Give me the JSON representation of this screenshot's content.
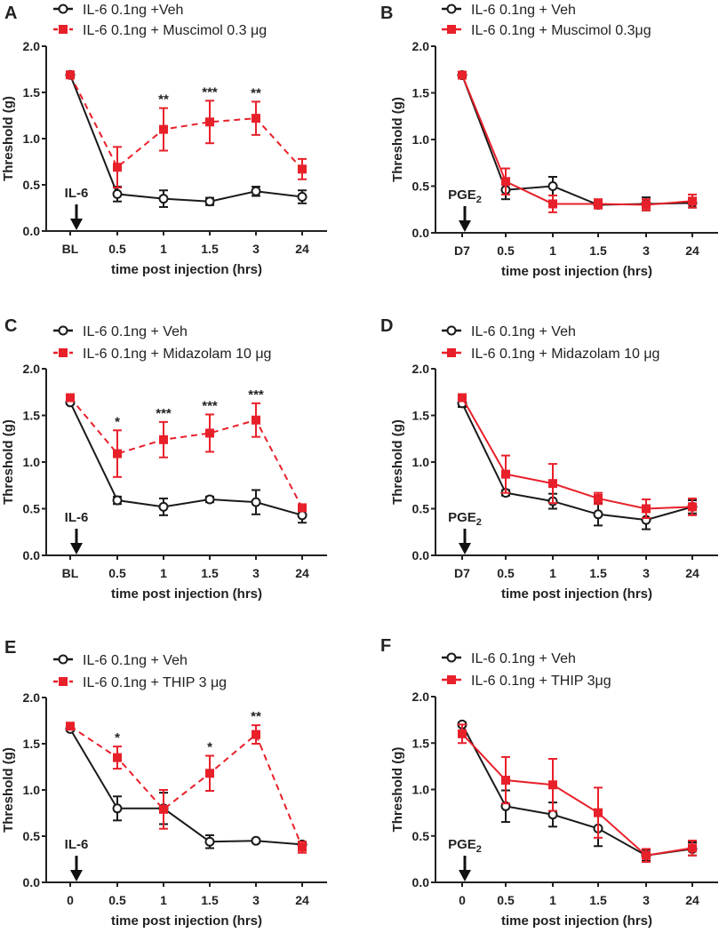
{
  "colors": {
    "veh": "#1a1a1a",
    "drug": "#e8202a"
  },
  "chart_data": [
    {
      "panel": "A",
      "type": "line",
      "categories": [
        "BL",
        "0.5",
        "1",
        "1.5",
        "3",
        "24"
      ],
      "xlabel": "time post injection (hrs)",
      "ylabel": "Threshold (g)",
      "ylim": [
        0,
        2.0
      ],
      "yticks": [
        "0.0",
        "0.5",
        "1.0",
        "1.5",
        "2.0"
      ],
      "injection_label": "IL-6",
      "injection_sub": "",
      "series": [
        {
          "name": "IL-6 0.1ng +Veh",
          "values": [
            1.69,
            0.4,
            0.35,
            0.32,
            0.43,
            0.37
          ],
          "errors": [
            0,
            0.08,
            0.09,
            0.04,
            0.05,
            0.07
          ],
          "dashed": false
        },
        {
          "name": "IL-6 0.1ng + Muscimol 0.3 μg",
          "values": [
            1.69,
            0.69,
            1.1,
            1.18,
            1.22,
            0.67
          ],
          "errors": [
            0,
            0.22,
            0.23,
            0.23,
            0.18,
            0.11
          ],
          "dashed": true
        }
      ],
      "significance": [
        "",
        "",
        "**",
        "***",
        "**",
        ""
      ]
    },
    {
      "panel": "B",
      "type": "line",
      "categories": [
        "D7",
        "0.5",
        "1",
        "1.5",
        "3",
        "24"
      ],
      "xlabel": "time post injection (hrs)",
      "ylabel": "Threshold (g)",
      "ylim": [
        0,
        2.0
      ],
      "yticks": [
        "0.0",
        "0.5",
        "1.0",
        "1.5",
        "2.0"
      ],
      "injection_label": "PGE",
      "injection_sub": "2",
      "series": [
        {
          "name": "IL-6 0.1ng + Veh",
          "values": [
            1.69,
            0.46,
            0.5,
            0.3,
            0.31,
            0.32
          ],
          "errors": [
            0,
            0.1,
            0.1,
            0.03,
            0.07,
            0.05
          ],
          "dashed": false
        },
        {
          "name": "IL-6 0.1ng + Muscimol 0.3μg",
          "values": [
            1.69,
            0.55,
            0.31,
            0.31,
            0.3,
            0.34
          ],
          "errors": [
            0,
            0.14,
            0.09,
            0.05,
            0.06,
            0.07
          ],
          "dashed": false
        }
      ],
      "significance": [
        "",
        "",
        "",
        "",
        "",
        ""
      ]
    },
    {
      "panel": "C",
      "type": "line",
      "categories": [
        "BL",
        "0.5",
        "1",
        "1.5",
        "3",
        "24"
      ],
      "xlabel": "time post injection (hrs)",
      "ylabel": "Threshold (g)",
      "ylim": [
        0,
        2.0
      ],
      "yticks": [
        "0.0",
        "0.5",
        "1.0",
        "1.5",
        "2.0"
      ],
      "injection_label": "IL-6",
      "injection_sub": "",
      "series": [
        {
          "name": "IL-6 0.1ng + Veh",
          "values": [
            1.64,
            0.59,
            0.52,
            0.6,
            0.57,
            0.43
          ],
          "errors": [
            0.02,
            0.04,
            0.09,
            0.03,
            0.13,
            0.08
          ],
          "dashed": false
        },
        {
          "name": "IL-6 0.1ng + Midazolam 10 μg",
          "values": [
            1.69,
            1.09,
            1.24,
            1.31,
            1.45,
            0.51
          ],
          "errors": [
            0,
            0.25,
            0.19,
            0.2,
            0.18,
            0.03
          ],
          "dashed": true
        }
      ],
      "significance": [
        "",
        "*",
        "***",
        "***",
        "***",
        ""
      ]
    },
    {
      "panel": "D",
      "type": "line",
      "categories": [
        "D7",
        "0.5",
        "1",
        "1.5",
        "3",
        "24"
      ],
      "xlabel": "time post injection (hrs)",
      "ylabel": "Threshold (g)",
      "ylim": [
        0,
        2.0
      ],
      "yticks": [
        "0.0",
        "0.5",
        "1.0",
        "1.5",
        "2.0"
      ],
      "injection_label": "PGE",
      "injection_sub": "2",
      "series": [
        {
          "name": "IL-6 0.1ng + Veh",
          "values": [
            1.63,
            0.67,
            0.58,
            0.44,
            0.38,
            0.52
          ],
          "errors": [
            0.04,
            0.03,
            0.08,
            0.12,
            0.1,
            0.07
          ],
          "dashed": false
        },
        {
          "name": "IL-6 0.1ng + Midazolam 10 μg",
          "values": [
            1.69,
            0.87,
            0.77,
            0.61,
            0.5,
            0.52
          ],
          "errors": [
            0.03,
            0.2,
            0.21,
            0.06,
            0.1,
            0.09
          ],
          "dashed": false
        }
      ],
      "significance": [
        "",
        "",
        "",
        "",
        "",
        ""
      ]
    },
    {
      "panel": "E",
      "type": "line",
      "categories": [
        "0",
        "0.5",
        "1",
        "1.5",
        "3",
        "24"
      ],
      "xlabel": "time post injection (hrs)",
      "ylabel": "Threshold (g)",
      "ylim": [
        0,
        2.0
      ],
      "yticks": [
        "0.0",
        "0.5",
        "1.0",
        "1.5",
        "2.0"
      ],
      "injection_label": "IL-6",
      "injection_sub": "",
      "series": [
        {
          "name": "IL-6 0.1ng + Veh",
          "values": [
            1.66,
            0.8,
            0.8,
            0.44,
            0.45,
            0.41
          ],
          "errors": [
            0.02,
            0.13,
            0.17,
            0.07,
            0.02,
            0.03
          ],
          "dashed": false
        },
        {
          "name": "IL-6 0.1ng + THIP 3 μg",
          "values": [
            1.69,
            1.35,
            0.79,
            1.18,
            1.6,
            0.38
          ],
          "errors": [
            0.02,
            0.12,
            0.21,
            0.19,
            0.1,
            0.06
          ],
          "dashed": true
        }
      ],
      "significance": [
        "",
        "*",
        "",
        "*",
        "**",
        ""
      ]
    },
    {
      "panel": "F",
      "type": "line",
      "categories": [
        "0",
        "0.5",
        "1",
        "1.5",
        "3",
        "24"
      ],
      "xlabel": "time post injection (hrs)",
      "ylabel": "Threshold (g)",
      "ylim": [
        0,
        2.0
      ],
      "yticks": [
        "0.0",
        "0.5",
        "1.0",
        "1.5",
        "2.0"
      ],
      "injection_label": "PGE",
      "injection_sub": "2",
      "series": [
        {
          "name": "IL-6 0.1ng + Veh",
          "values": [
            1.7,
            0.82,
            0.73,
            0.58,
            0.29,
            0.36
          ],
          "errors": [
            0.02,
            0.17,
            0.13,
            0.19,
            0.06,
            0.07
          ],
          "dashed": false
        },
        {
          "name": "IL-6 0.1ng + THIP 3μg",
          "values": [
            1.6,
            1.1,
            1.05,
            0.75,
            0.29,
            0.37
          ],
          "errors": [
            0.1,
            0.25,
            0.28,
            0.27,
            0.07,
            0.08
          ],
          "dashed": false
        }
      ],
      "significance": [
        "",
        "",
        "",
        "",
        "",
        ""
      ]
    }
  ]
}
